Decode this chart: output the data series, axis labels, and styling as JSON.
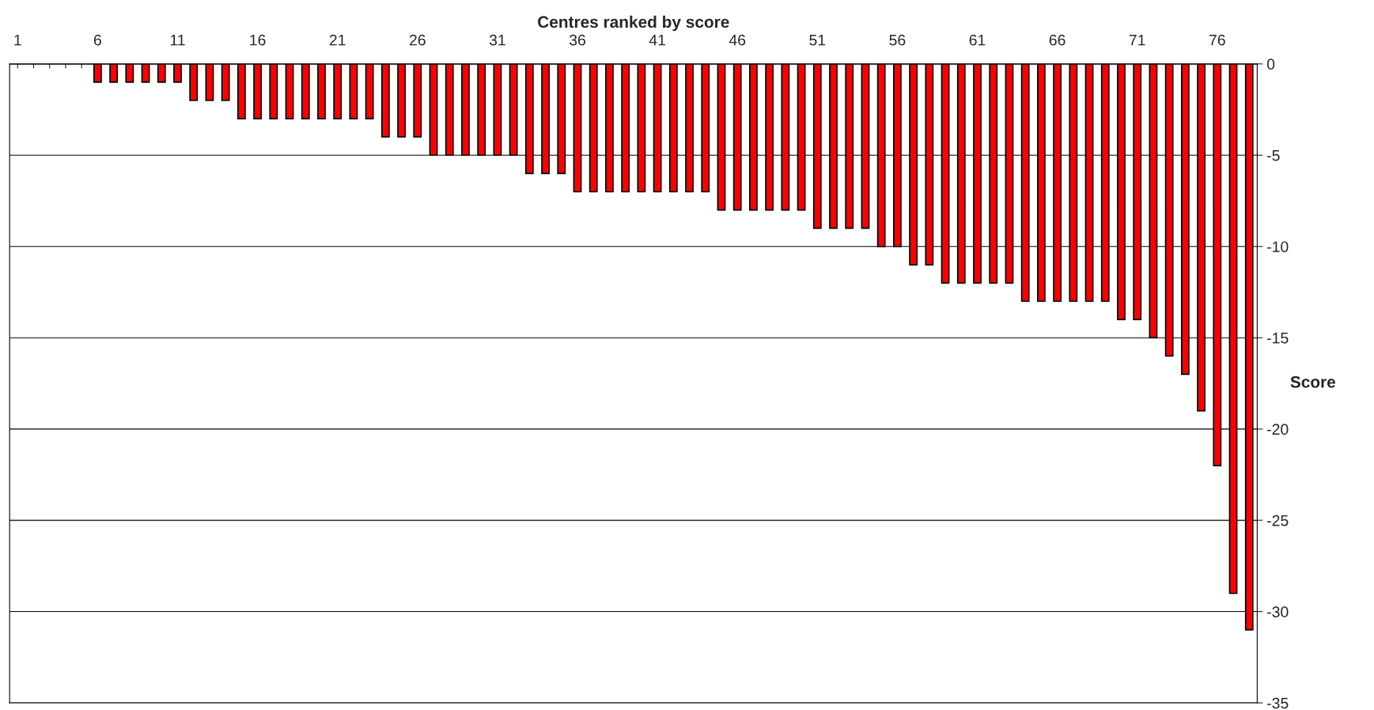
{
  "chart_data": {
    "type": "bar",
    "xlabel": "Centres ranked by score",
    "ylabel": "Score",
    "categories": [
      "1",
      null,
      null,
      null,
      null,
      "6",
      null,
      null,
      null,
      null,
      "11",
      null,
      null,
      null,
      null,
      "16",
      null,
      null,
      null,
      null,
      "21",
      null,
      null,
      null,
      null,
      "26",
      null,
      null,
      null,
      null,
      "31",
      null,
      null,
      null,
      null,
      "36",
      null,
      null,
      null,
      null,
      "41",
      null,
      null,
      null,
      null,
      "46",
      null,
      null,
      null,
      null,
      "51",
      null,
      null,
      null,
      null,
      "56",
      null,
      null,
      null,
      null,
      "61",
      null,
      null,
      null,
      null,
      "66",
      null,
      null,
      null,
      null,
      "71",
      null,
      null,
      null,
      null,
      "76",
      null,
      null
    ],
    "values": [
      0,
      0,
      0,
      0,
      0,
      -1,
      -1,
      -1,
      -1,
      -1,
      -1,
      -2,
      -2,
      -2,
      -3,
      -3,
      -3,
      -3,
      -3,
      -3,
      -3,
      -3,
      -3,
      -4,
      -4,
      -4,
      -5,
      -5,
      -5,
      -5,
      -5,
      -5,
      -6,
      -6,
      -6,
      -7,
      -7,
      -7,
      -7,
      -7,
      -7,
      -7,
      -7,
      -7,
      -8,
      -8,
      -8,
      -8,
      -8,
      -8,
      -9,
      -9,
      -9,
      -9,
      -10,
      -10,
      -11,
      -11,
      -12,
      -12,
      -12,
      -12,
      -12,
      -13,
      -13,
      -13,
      -13,
      -13,
      -13,
      -14,
      -14,
      -15,
      -16,
      -17,
      -19,
      -22,
      -29,
      -31
    ],
    "color": "#ff0000",
    "ylim": [
      -35,
      0
    ],
    "yticks": [
      0,
      -5,
      -10,
      -15,
      -20,
      -25,
      -30,
      -35
    ],
    "grid": "y"
  }
}
